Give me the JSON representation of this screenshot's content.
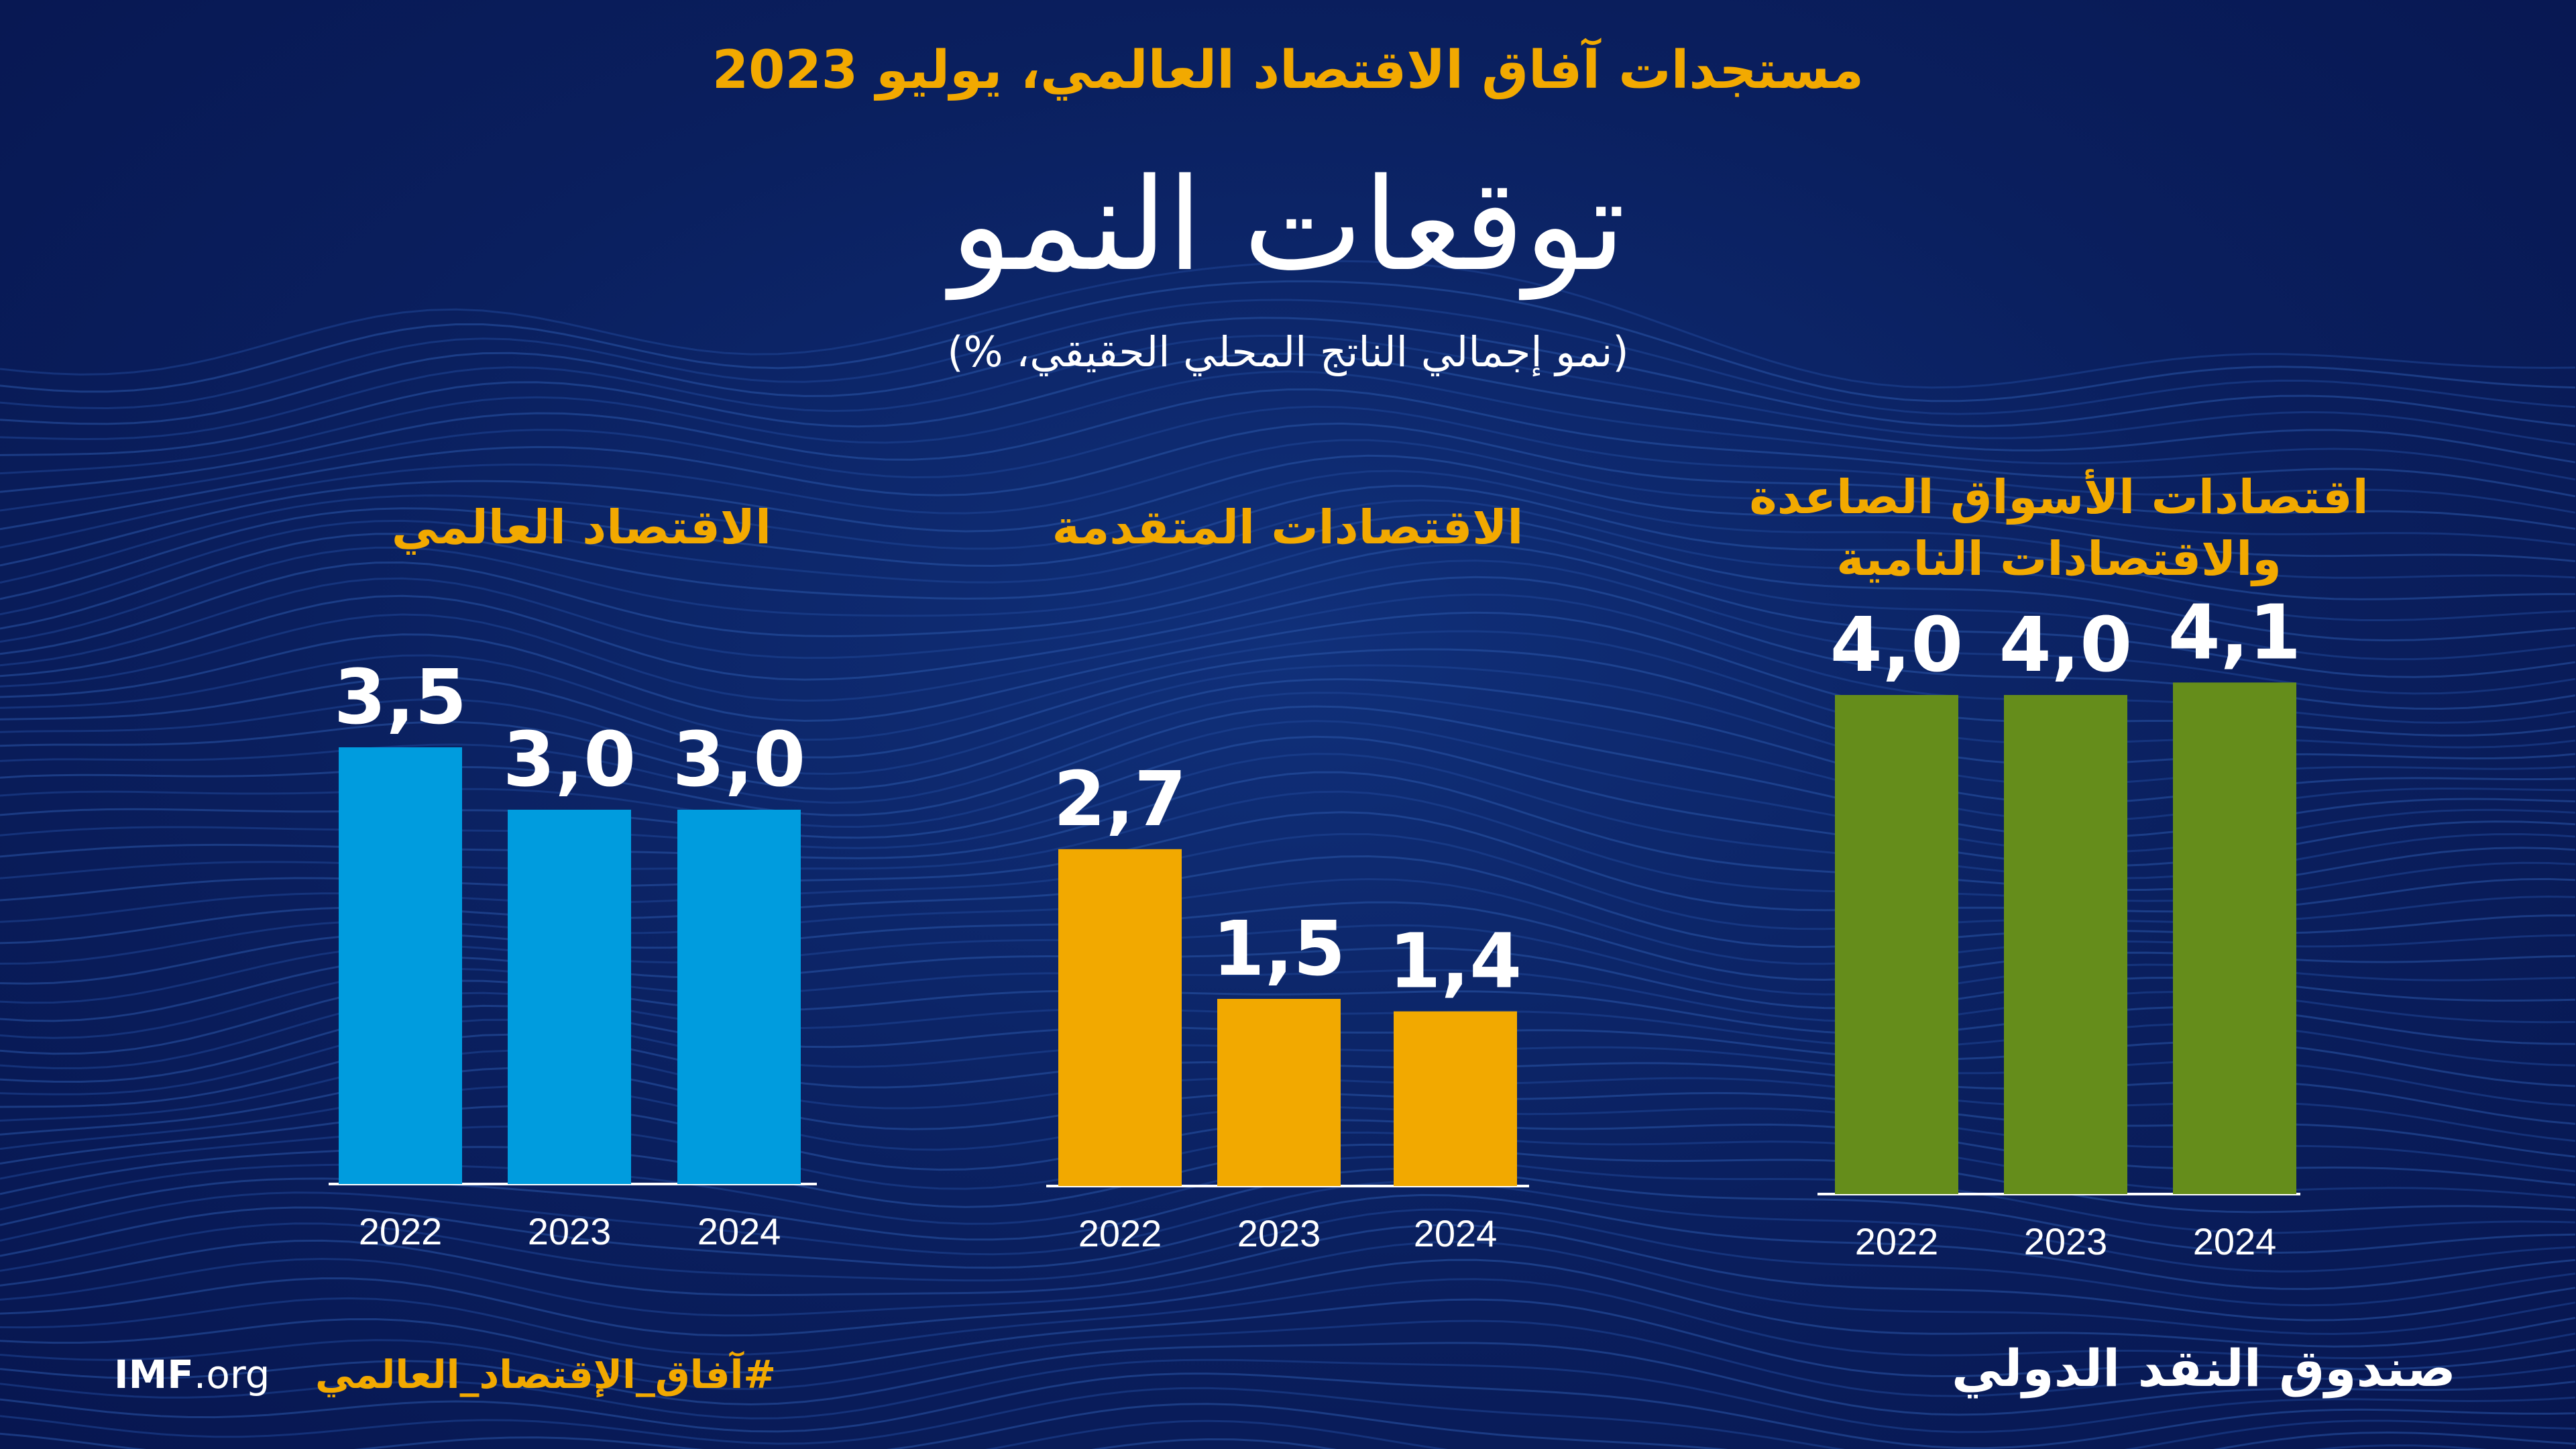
{
  "header": {
    "subtitle": "مستجدات آفاق الاقتصاد العالمي، يوليو 2023",
    "title": "توقعات النمو",
    "unit_note": "(نمو إجمالي الناتج المحلي الحقيقي، %)"
  },
  "footer": {
    "site_bold": "IMF",
    "site_rest": ".org",
    "hashtag": "#آفاق_الإقتصاد_العالمي",
    "brand": "صندوق النقد الدولي"
  },
  "colors": {
    "background": "#0b1f5c",
    "accent_gold": "#f2a900",
    "world_bar": "#009cde",
    "advanced_bar": "#f2a900",
    "emerging_bar": "#658d1b",
    "text_white": "#ffffff"
  },
  "chart_data": [
    {
      "type": "bar",
      "title": "الاقتصاد العالمي",
      "categories": [
        "2022",
        "2023",
        "2024"
      ],
      "values": [
        3.5,
        3.0,
        3.0
      ],
      "value_labels": [
        "3,5",
        "3,0",
        "3,0"
      ],
      "color": "#009cde",
      "ylim": [
        0,
        4.5
      ],
      "grid": false
    },
    {
      "type": "bar",
      "title": "الاقتصادات المتقدمة",
      "categories": [
        "2022",
        "2023",
        "2024"
      ],
      "values": [
        2.7,
        1.5,
        1.4
      ],
      "value_labels": [
        "2,7",
        "1,5",
        "1,4"
      ],
      "color": "#f2a900",
      "ylim": [
        0,
        4.5
      ],
      "grid": false
    },
    {
      "type": "bar",
      "title_lines": [
        "اقتصادات الأسواق الصاعدة",
        "والاقتصادات النامية"
      ],
      "categories": [
        "2022",
        "2023",
        "2024"
      ],
      "values": [
        4.0,
        4.0,
        4.1
      ],
      "value_labels": [
        "4,0",
        "4,0",
        "4,1"
      ],
      "color": "#658d1b",
      "ylim": [
        0,
        4.5
      ],
      "grid": false
    }
  ]
}
